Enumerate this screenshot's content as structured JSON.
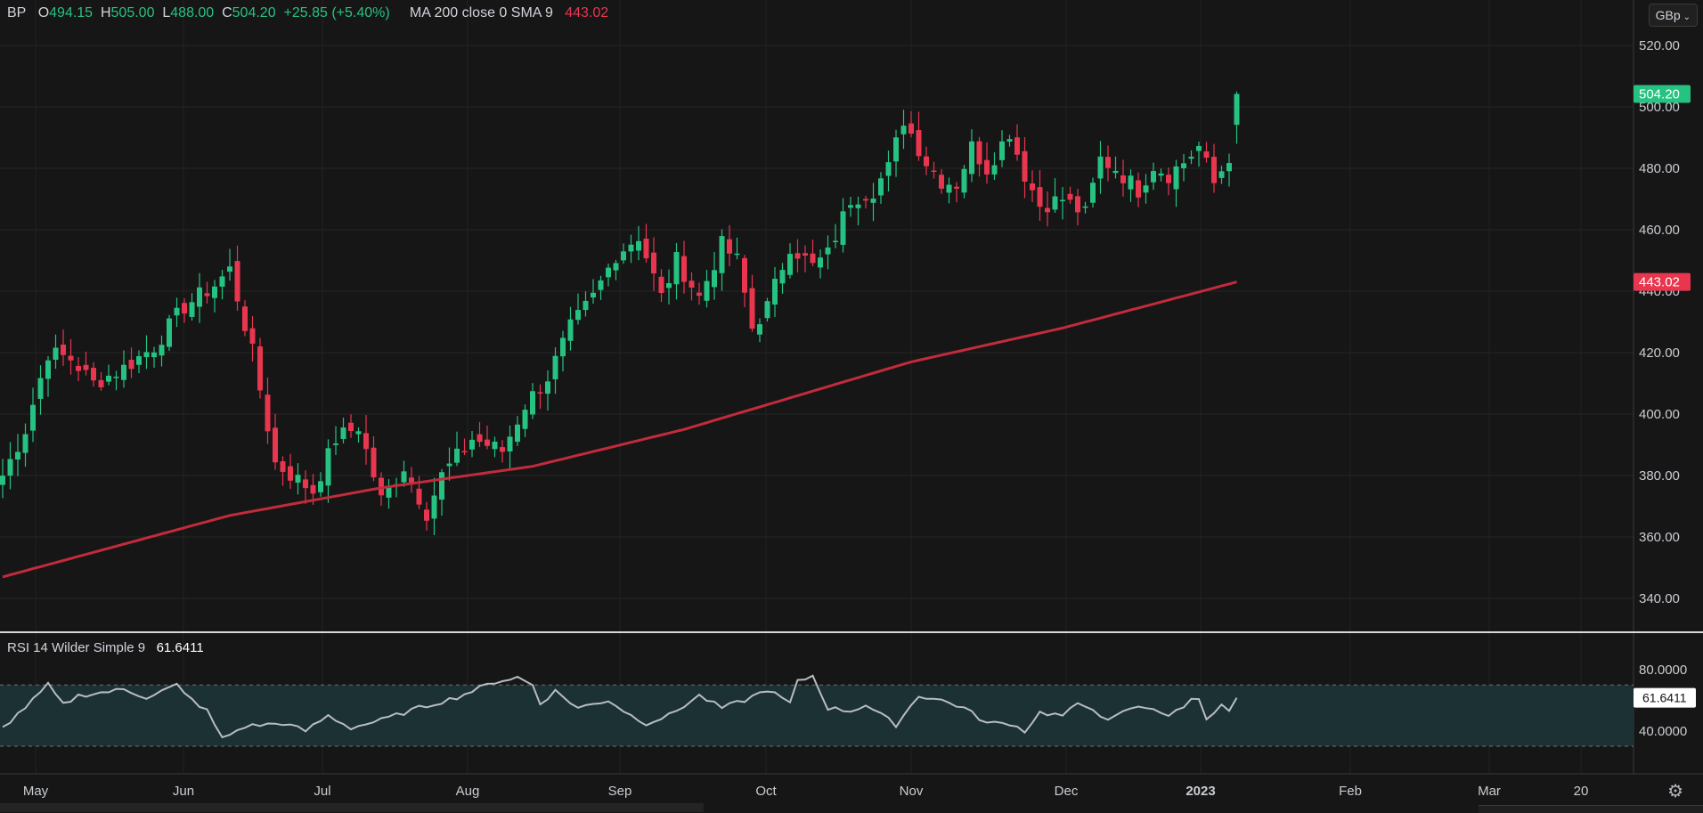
{
  "legend": {
    "symbol": "BP",
    "open_label": "O",
    "open": "494.15",
    "high_label": "H",
    "high": "505.00",
    "low_label": "L",
    "low": "488.00",
    "close_label": "C",
    "close": "504.20",
    "change": "+25.85 (+5.40%)",
    "ma_label": "MA 200 close 0 SMA 9",
    "ma_value": "443.02"
  },
  "currency": {
    "label": "GBp",
    "chevron": "chevron-down-icon"
  },
  "rsi_legend": {
    "label": "RSI 14 Wilder Simple 9",
    "value": "61.6411"
  },
  "colors": {
    "up": "#26c281",
    "down": "#e8364f",
    "ma": "#c22b3c",
    "rsi": "#b9bcc2",
    "rsi_band": "#1b3133",
    "background": "#161616"
  },
  "chart_data": {
    "type": "candlestick",
    "price_axis": {
      "ticks": [
        "520.00",
        "500.00",
        "480.00",
        "460.00",
        "440.00",
        "420.00",
        "400.00",
        "380.00",
        "360.00",
        "340.00"
      ],
      "range": [
        334,
        530
      ]
    },
    "last_price_label": "504.20",
    "ma_price_label": "443.02",
    "time_axis": [
      "May",
      "Jun",
      "Jul",
      "Aug",
      "Sep",
      "Oct",
      "Nov",
      "Dec",
      "2023",
      "Feb",
      "Mar",
      "20"
    ],
    "anchors": [
      [
        0,
        380
      ],
      [
        3,
        395
      ],
      [
        6,
        420
      ],
      [
        9,
        418
      ],
      [
        12,
        410
      ],
      [
        16,
        415
      ],
      [
        20,
        422
      ],
      [
        24,
        435
      ],
      [
        28,
        442
      ],
      [
        30,
        447
      ],
      [
        33,
        420
      ],
      [
        36,
        384
      ],
      [
        41,
        375
      ],
      [
        44,
        392
      ],
      [
        47,
        396
      ],
      [
        50,
        372
      ],
      [
        53,
        383
      ],
      [
        56,
        368
      ],
      [
        58,
        380
      ],
      [
        62,
        392
      ],
      [
        66,
        388
      ],
      [
        69,
        403
      ],
      [
        72,
        412
      ],
      [
        75,
        428
      ],
      [
        78,
        438
      ],
      [
        81,
        452
      ],
      [
        84,
        458
      ],
      [
        87,
        438
      ],
      [
        89,
        450
      ],
      [
        92,
        438
      ],
      [
        95,
        455
      ],
      [
        97,
        450
      ],
      [
        99,
        428
      ],
      [
        101,
        435
      ],
      [
        104,
        455
      ],
      [
        107,
        448
      ],
      [
        109,
        452
      ],
      [
        112,
        470
      ],
      [
        115,
        473
      ],
      [
        117,
        480
      ],
      [
        119,
        496
      ],
      [
        122,
        482
      ],
      [
        124,
        476
      ],
      [
        126,
        475
      ],
      [
        128,
        487
      ],
      [
        130,
        480
      ],
      [
        133,
        492
      ],
      [
        135,
        478
      ],
      [
        137,
        468
      ],
      [
        140,
        470
      ],
      [
        143,
        465
      ],
      [
        145,
        483
      ],
      [
        147,
        480
      ],
      [
        150,
        473
      ],
      [
        152,
        481
      ],
      [
        154,
        478
      ],
      [
        156,
        482
      ],
      [
        158,
        487
      ],
      [
        160,
        475
      ],
      [
        162,
        484
      ],
      [
        163,
        504
      ]
    ],
    "ma200": [
      [
        0,
        347
      ],
      [
        30,
        367
      ],
      [
        50,
        376
      ],
      [
        70,
        383
      ],
      [
        90,
        395
      ],
      [
        120,
        417
      ],
      [
        140,
        428
      ],
      [
        163,
        443
      ]
    ],
    "rsi": {
      "axis_ticks": [
        "80.0000",
        "40.0000"
      ],
      "upper_band": 70,
      "lower_band": 30,
      "last_value_label": "61.6411",
      "anchors": [
        [
          0,
          42
        ],
        [
          4,
          60
        ],
        [
          6,
          70
        ],
        [
          8,
          57
        ],
        [
          10,
          63
        ],
        [
          16,
          67
        ],
        [
          19,
          62
        ],
        [
          23,
          70
        ],
        [
          24,
          64
        ],
        [
          27,
          53
        ],
        [
          29,
          35
        ],
        [
          32,
          43
        ],
        [
          37,
          45
        ],
        [
          40,
          40
        ],
        [
          43,
          50
        ],
        [
          46,
          42
        ],
        [
          50,
          47
        ],
        [
          55,
          55
        ],
        [
          60,
          62
        ],
        [
          65,
          72
        ],
        [
          68,
          75
        ],
        [
          70,
          70
        ],
        [
          71,
          58
        ],
        [
          73,
          66
        ],
        [
          76,
          55
        ],
        [
          80,
          60
        ],
        [
          83,
          50
        ],
        [
          85,
          45
        ],
        [
          88,
          50
        ],
        [
          92,
          63
        ],
        [
          95,
          55
        ],
        [
          98,
          60
        ],
        [
          101,
          67
        ],
        [
          104,
          58
        ],
        [
          105,
          72
        ],
        [
          107,
          76
        ],
        [
          109,
          55
        ],
        [
          112,
          53
        ],
        [
          114,
          57
        ],
        [
          118,
          44
        ],
        [
          121,
          63
        ],
        [
          124,
          60
        ],
        [
          127,
          55
        ],
        [
          130,
          45
        ],
        [
          133,
          45
        ],
        [
          135,
          40
        ],
        [
          137,
          52
        ],
        [
          140,
          50
        ],
        [
          142,
          57
        ],
        [
          144,
          55
        ],
        [
          146,
          46
        ],
        [
          149,
          55
        ],
        [
          152,
          55
        ],
        [
          154,
          50
        ],
        [
          156,
          55
        ],
        [
          157,
          62
        ],
        [
          158,
          60
        ],
        [
          159,
          48
        ],
        [
          161,
          58
        ],
        [
          162,
          52
        ],
        [
          163,
          61.6
        ]
      ]
    }
  }
}
